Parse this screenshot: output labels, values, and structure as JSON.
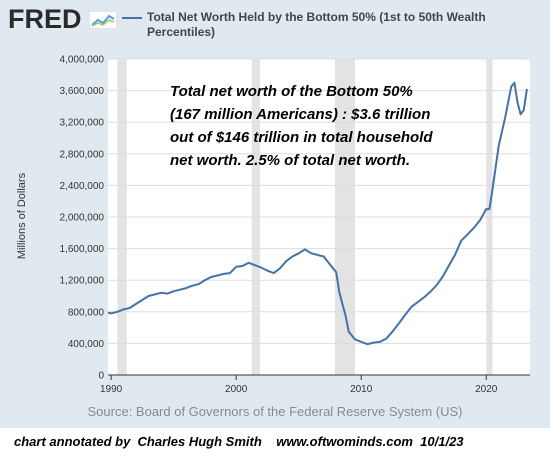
{
  "header": {
    "logo_text": "FRED",
    "logo_icon": "chart-line-icon",
    "series_title": "Total Net Worth Held by the Bottom 50% (1st to 50th Wealth Percentiles)"
  },
  "footer": {
    "source": "Source: Board of Governors of the Federal Reserve System (US)",
    "credit": "chart annotated by  Charles Hugh Smith    www.oftwominds.com  10/1/23"
  },
  "colors": {
    "line": "#4572a7",
    "recession": "#e3e3e3",
    "frame": "#e1e9f0"
  },
  "chart_data": {
    "type": "line",
    "ylabel": "Millions of Dollars",
    "ylim": [
      0,
      4000000
    ],
    "yticks": [
      0,
      400000,
      800000,
      1200000,
      1600000,
      2000000,
      2400000,
      2800000,
      3200000,
      3600000,
      4000000
    ],
    "ytick_labels": [
      "0",
      "400,000",
      "800,000",
      "1,200,000",
      "1,600,000",
      "2,000,000",
      "2,400,000",
      "2,800,000",
      "3,200,000",
      "3,600,000",
      "4,000,000"
    ],
    "xlim": [
      1989.75,
      2023.5
    ],
    "xticks": [
      1990,
      2000,
      2010,
      2020
    ],
    "xtick_labels": [
      "1990",
      "2000",
      "2010",
      "2020"
    ],
    "grid": true,
    "recessions": [
      [
        1990.5,
        1991.25
      ],
      [
        2001.25,
        2001.9
      ],
      [
        2007.9,
        2009.5
      ],
      [
        2020.0,
        2020.5
      ]
    ],
    "annotation": [
      "Total net worth of the Bottom 50%",
      "(167 million Americans) : $3.6 trillion",
      "out of $146 trillion in total household",
      "net worth.   2.5% of total net worth."
    ],
    "series": [
      {
        "x": [
          1989.75,
          1990.0,
          1990.5,
          1991.0,
          1991.5,
          1992.0,
          1992.5,
          1993.0,
          1993.5,
          1994.0,
          1994.5,
          1995.0,
          1995.5,
          1996.0,
          1996.5,
          1997.0,
          1997.5,
          1998.0,
          1998.5,
          1999.0,
          1999.5,
          2000.0,
          2000.5,
          2001.0,
          2001.5,
          2002.0,
          2002.5,
          2003.0,
          2003.5,
          2004.0,
          2004.5,
          2005.0,
          2005.5,
          2006.0,
          2006.5,
          2007.0,
          2007.5,
          2008.0,
          2008.25,
          2008.5,
          2008.75,
          2009.0,
          2009.5,
          2010.0,
          2010.5,
          2011.0,
          2011.5,
          2012.0,
          2012.5,
          2013.0,
          2013.5,
          2014.0,
          2014.5,
          2015.0,
          2015.5,
          2016.0,
          2016.5,
          2017.0,
          2017.5,
          2018.0,
          2018.5,
          2019.0,
          2019.5,
          2020.0,
          2020.25,
          2020.5,
          2021.0,
          2021.5,
          2022.0,
          2022.25,
          2022.5,
          2022.75,
          2023.0,
          2023.25
        ],
        "values": [
          790000,
          780000,
          800000,
          830000,
          850000,
          900000,
          950000,
          1000000,
          1020000,
          1040000,
          1030000,
          1060000,
          1080000,
          1100000,
          1130000,
          1150000,
          1200000,
          1240000,
          1260000,
          1280000,
          1290000,
          1370000,
          1380000,
          1420000,
          1390000,
          1360000,
          1320000,
          1290000,
          1350000,
          1440000,
          1500000,
          1540000,
          1590000,
          1540000,
          1520000,
          1500000,
          1400000,
          1300000,
          1050000,
          900000,
          750000,
          550000,
          450000,
          420000,
          390000,
          410000,
          420000,
          460000,
          550000,
          650000,
          760000,
          860000,
          920000,
          980000,
          1050000,
          1130000,
          1240000,
          1380000,
          1520000,
          1700000,
          1780000,
          1860000,
          1960000,
          2100000,
          2100000,
          2350000,
          2900000,
          3250000,
          3650000,
          3700000,
          3450000,
          3300000,
          3350000,
          3620000
        ]
      }
    ]
  }
}
